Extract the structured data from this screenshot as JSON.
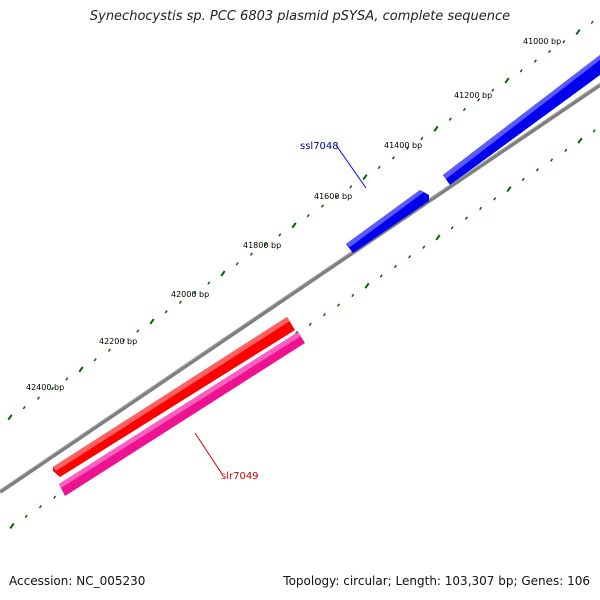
{
  "title": "Synechocystis sp. PCC 6803 plasmid pSYSA, complete sequence",
  "footer": {
    "accession": "Accession: NC_005230",
    "summary": "Topology: circular; Length: 103,307 bp; Genes: 106"
  },
  "position_labels": [
    "41000 bp",
    "41200 bp",
    "41400 bp",
    "41600 bp",
    "41800 bp",
    "42000 bp",
    "42200 bp",
    "42400 bp"
  ],
  "genes": [
    {
      "name": "ssl7048",
      "strand": "forward",
      "color": "#0000ee",
      "label_color": "#00008b"
    },
    {
      "name": "slr7049",
      "strand": "reverse",
      "color": "#ff0000",
      "label_color": "#cc0000",
      "companion_color": "#ee1290"
    }
  ],
  "colors": {
    "backbone": "#808080",
    "ticks": "#006400"
  }
}
